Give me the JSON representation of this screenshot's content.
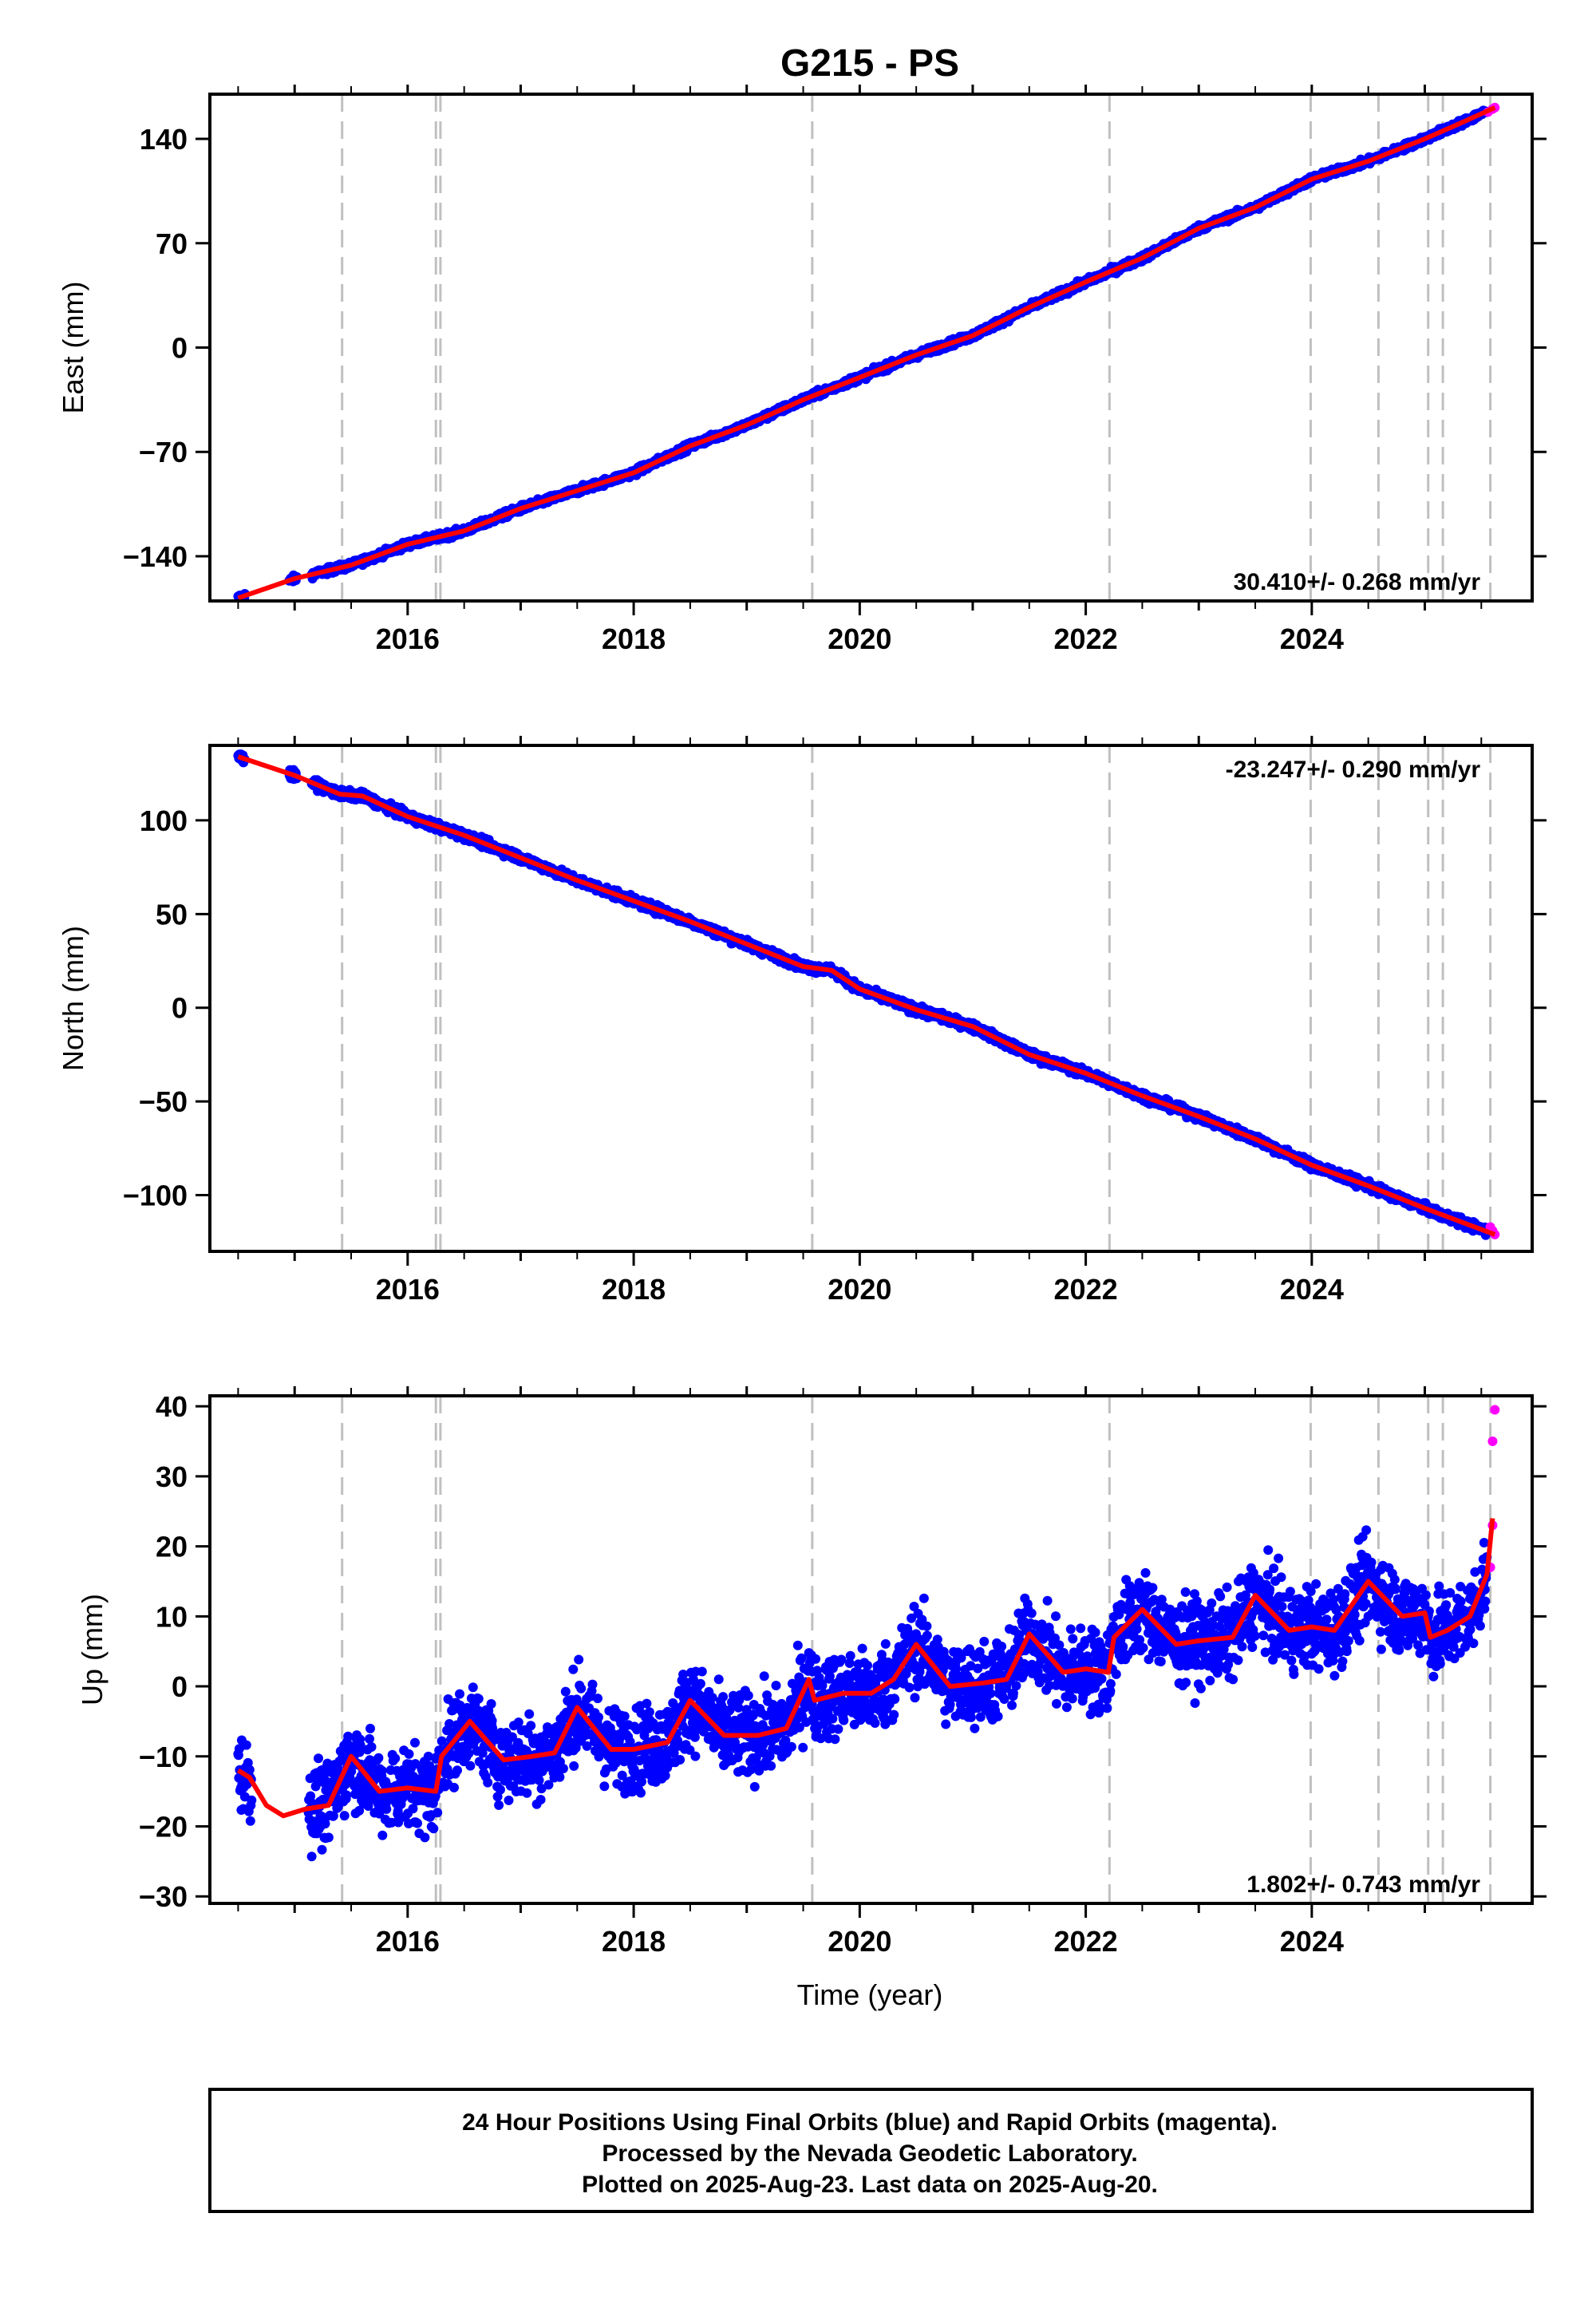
{
  "title": "G215 - PS",
  "colors": {
    "final": "#0000ff",
    "rapid": "#ff00ff",
    "fit": "#ff0000",
    "event": "#c0c0c0",
    "frame": "#000000"
  },
  "chart_data": [
    {
      "type": "scatter",
      "panel": "east",
      "ylabel": "East (mm)",
      "xlabel": "",
      "xlim": [
        2014.25,
        2025.95
      ],
      "ylim": [
        -170,
        170
      ],
      "yticks": [
        140,
        70,
        0,
        -70,
        -140
      ],
      "xticks": [
        2016,
        2018,
        2020,
        2022,
        2024
      ],
      "rate_text": "30.410+/- 0.268 mm/yr",
      "rate_position": "bottom-right",
      "event_lines": [
        2015.42,
        2016.25,
        2016.29,
        2019.58,
        2022.21,
        2023.99,
        2024.59,
        2025.03,
        2025.16,
        2025.58
      ],
      "trend": {
        "x": [
          2014.5,
          2015.0,
          2015.5,
          2016.0,
          2016.5,
          2017.0,
          2017.5,
          2018.0,
          2018.5,
          2019.0,
          2019.5,
          2020.0,
          2020.5,
          2021.0,
          2021.5,
          2022.0,
          2022.5,
          2023.0,
          2023.5,
          2024.0,
          2024.5,
          2025.0,
          2025.3,
          2025.62
        ],
        "y": [
          -168,
          -155,
          -146,
          -132,
          -123,
          -108,
          -96,
          -84,
          -66,
          -52,
          -35,
          -20,
          -5,
          8,
          27,
          44,
          60,
          80,
          94,
          113,
          125,
          140,
          150,
          161
        ]
      },
      "final_sample": {
        "x": [
          2014.5,
          2015.3,
          2016.0,
          2017.0,
          2018.0,
          2019.0,
          2020.0,
          2021.0,
          2022.0,
          2023.0,
          2024.0,
          2025.0,
          2025.5
        ],
        "y": [
          -168,
          -150,
          -132,
          -108,
          -84,
          -52,
          -20,
          8,
          44,
          80,
          113,
          140,
          157
        ]
      },
      "rapid_sample": {
        "x": [
          2025.56,
          2025.6,
          2025.62
        ],
        "y": [
          158,
          160,
          161
        ]
      }
    },
    {
      "type": "scatter",
      "panel": "north",
      "ylabel": "North (mm)",
      "xlabel": "",
      "xlim": [
        2014.25,
        2025.95
      ],
      "ylim": [
        -130,
        140
      ],
      "yticks": [
        100,
        50,
        0,
        -50,
        -100
      ],
      "xticks": [
        2016,
        2018,
        2020,
        2022,
        2024
      ],
      "rate_text": "-23.247+/- 0.290 mm/yr",
      "rate_position": "top-right",
      "event_lines": [
        2015.42,
        2016.25,
        2016.29,
        2019.58,
        2022.21,
        2023.99,
        2024.59,
        2025.03,
        2025.16,
        2025.58
      ],
      "trend": {
        "x": [
          2014.5,
          2015.0,
          2015.4,
          2015.6,
          2016.0,
          2016.5,
          2017.0,
          2017.5,
          2018.0,
          2018.5,
          2019.0,
          2019.5,
          2019.75,
          2020.0,
          2020.5,
          2021.0,
          2021.5,
          2022.0,
          2022.5,
          2023.0,
          2023.5,
          2024.0,
          2024.5,
          2025.0,
          2025.62
        ],
        "y": [
          134,
          124,
          114,
          113,
          102,
          92,
          80,
          68,
          57,
          46,
          34,
          22,
          20,
          10,
          -1,
          -10,
          -25,
          -35,
          -47,
          -58,
          -70,
          -84,
          -95,
          -107,
          -121
        ]
      },
      "final_sample": {
        "x": [
          2014.5,
          2015.5,
          2016.5,
          2017.5,
          2018.5,
          2019.5,
          2020.5,
          2021.5,
          2022.5,
          2023.5,
          2024.5,
          2025.5
        ],
        "y": [
          134,
          113,
          92,
          68,
          46,
          22,
          -1,
          -25,
          -47,
          -70,
          -95,
          -121
        ]
      },
      "rapid_sample": {
        "x": [
          2025.58,
          2025.6,
          2025.62
        ],
        "y": [
          -117,
          -119,
          -121
        ]
      }
    },
    {
      "type": "scatter",
      "panel": "up",
      "ylabel": "Up (mm)",
      "xlabel": "Time (year)",
      "xlim": [
        2014.25,
        2025.95
      ],
      "ylim": [
        -31,
        41.5
      ],
      "yticks": [
        40,
        30,
        20,
        10,
        0,
        -10,
        -20,
        -30
      ],
      "xticks": [
        2016,
        2018,
        2020,
        2022,
        2024
      ],
      "rate_text": "1.802+/- 0.743 mm/yr",
      "rate_position": "bottom-right",
      "event_lines": [
        2015.42,
        2016.25,
        2016.29,
        2019.58,
        2022.21,
        2023.99,
        2024.59,
        2025.03,
        2025.16,
        2025.58
      ],
      "trend": {
        "x": [
          2014.5,
          2014.6,
          2014.75,
          2014.9,
          2015.1,
          2015.3,
          2015.5,
          2015.75,
          2016.0,
          2016.25,
          2016.3,
          2016.55,
          2016.85,
          2017.1,
          2017.3,
          2017.5,
          2017.8,
          2018.0,
          2018.3,
          2018.5,
          2018.8,
          2019.1,
          2019.35,
          2019.55,
          2019.6,
          2019.85,
          2020.1,
          2020.3,
          2020.5,
          2020.8,
          2021.1,
          2021.3,
          2021.5,
          2021.8,
          2022.0,
          2022.2,
          2022.25,
          2022.5,
          2022.8,
          2023.0,
          2023.3,
          2023.5,
          2023.8,
          2024.0,
          2024.2,
          2024.5,
          2024.8,
          2025.0,
          2025.05,
          2025.2,
          2025.4,
          2025.55,
          2025.6
        ],
        "y": [
          -12,
          -13,
          -17,
          -18.5,
          -17.5,
          -17,
          -10,
          -15,
          -14.5,
          -15,
          -10,
          -5,
          -10.5,
          -10,
          -9.5,
          -3,
          -9,
          -9,
          -8,
          -2,
          -7,
          -7,
          -6,
          1,
          -2,
          -1,
          -1,
          1,
          6,
          0,
          0.5,
          1,
          7.5,
          2,
          2.5,
          2,
          7,
          11,
          6,
          6.5,
          7,
          13,
          8,
          8.5,
          8,
          15,
          10,
          10.5,
          7,
          8,
          10,
          16,
          24
        ]
      },
      "final_sample": {
        "x": [
          2014.5,
          2015.0,
          2015.2,
          2015.5,
          2016.0,
          2016.5,
          2017.0,
          2017.5,
          2018.0,
          2018.5,
          2019.0,
          2019.5,
          2020.0,
          2020.5,
          2021.0,
          2021.5,
          2022.0,
          2022.5,
          2023.0,
          2023.5,
          2024.0,
          2024.5,
          2025.0,
          2025.4
        ],
        "y": [
          -12,
          -18,
          -25,
          -10,
          -14,
          -6,
          -10,
          -3,
          -9,
          -2,
          -7,
          1,
          -1,
          6,
          0,
          7,
          2,
          11,
          6,
          13,
          8,
          15,
          10,
          16
        ]
      },
      "rapid_sample": {
        "x": [
          2025.58,
          2025.6,
          2025.6,
          2025.62
        ],
        "y": [
          17,
          23,
          35,
          39.5
        ]
      }
    }
  ],
  "footer": {
    "line1": "24 Hour Positions Using Final Orbits (blue) and Rapid Orbits (magenta).",
    "line2": "Processed by the Nevada Geodetic Laboratory.",
    "line3": "Plotted on 2025-Aug-23. Last data on 2025-Aug-20."
  }
}
